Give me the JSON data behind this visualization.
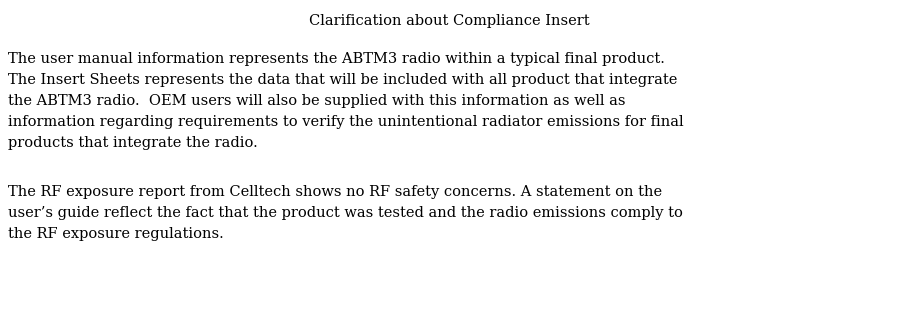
{
  "title": "Clarification about Compliance Insert",
  "paragraph1_lines": [
    "The user manual information represents the ABTM3 radio within a typical final product.",
    "The Insert Sheets represents the data that will be included with all product that integrate",
    "the ABTM3 radio.  OEM users will also be supplied with this information as well as",
    "information regarding requirements to verify the unintentional radiator emissions for final",
    "products that integrate the radio."
  ],
  "paragraph2_lines": [
    "The RF exposure report from Celltech shows no RF safety concerns. A statement on the",
    "user’s guide reflect the fact that the product was tested and the radio emissions comply to",
    "the RF exposure regulations."
  ],
  "bg_color": "#ffffff",
  "text_color": "#000000",
  "title_fontsize": 10.5,
  "body_fontsize": 10.5,
  "fig_width": 8.99,
  "fig_height": 3.11,
  "dpi": 100
}
